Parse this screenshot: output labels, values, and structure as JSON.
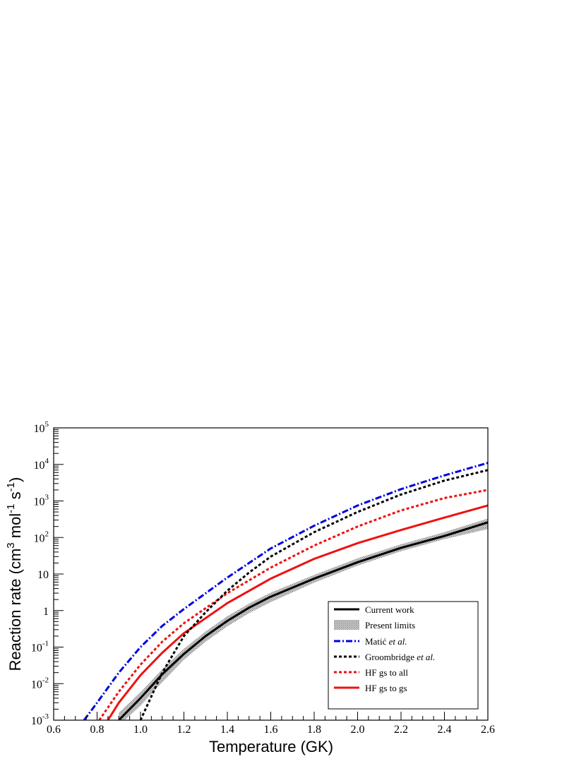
{
  "chart_data": {
    "type": "line",
    "title": "",
    "xlabel": "Temperature (GK)",
    "ylabel": "Reaction rate (cm³ mol⁻¹ s⁻¹)",
    "ylabel_parts": {
      "base1": "Reaction rate (cm",
      "sup1": "3",
      "base2": " mol",
      "sup2": "-1",
      "base3": " s",
      "sup3": "-1",
      "base4": ")"
    },
    "xlim": [
      0.6,
      2.6
    ],
    "ylim": [
      0.001,
      100000
    ],
    "yscale": "log",
    "grid": false,
    "legend_position": "lower-right",
    "x_ticks": [
      {
        "value": 0.6,
        "label": "0.6"
      },
      {
        "value": 0.8,
        "label": "0.8"
      },
      {
        "value": 1.0,
        "label": "1.0"
      },
      {
        "value": 1.2,
        "label": "1.2"
      },
      {
        "value": 1.4,
        "label": "1.4"
      },
      {
        "value": 1.6,
        "label": "1.6"
      },
      {
        "value": 1.8,
        "label": "1.8"
      },
      {
        "value": 2.0,
        "label": "2.0"
      },
      {
        "value": 2.2,
        "label": "2.2"
      },
      {
        "value": 2.4,
        "label": "2.4"
      },
      {
        "value": 2.6,
        "label": "2.6"
      }
    ],
    "y_ticks": [
      {
        "value": 0.001,
        "base": "10",
        "exp": "-3"
      },
      {
        "value": 0.01,
        "base": "10",
        "exp": "-2"
      },
      {
        "value": 0.1,
        "base": "10",
        "exp": "-1"
      },
      {
        "value": 1,
        "base": "1",
        "exp": ""
      },
      {
        "value": 10,
        "base": "10",
        "exp": ""
      },
      {
        "value": 100,
        "base": "10",
        "exp": "2"
      },
      {
        "value": 1000,
        "base": "10",
        "exp": "3"
      },
      {
        "value": 10000,
        "base": "10",
        "exp": "4"
      },
      {
        "value": 100000,
        "base": "10",
        "exp": "5"
      }
    ],
    "band": {
      "name": "Present limits",
      "color": "#a0a0a0",
      "x": [
        0.9,
        1.0,
        1.1,
        1.2,
        1.3,
        1.4,
        1.5,
        1.6,
        1.8,
        2.0,
        2.2,
        2.4,
        2.6
      ],
      "lower": [
        0.0007,
        0.0025,
        0.011,
        0.045,
        0.14,
        0.37,
        0.85,
        1.7,
        5.8,
        17,
        42,
        90,
        170
      ],
      "upper": [
        0.0016,
        0.0058,
        0.025,
        0.09,
        0.27,
        0.7,
        1.55,
        3.1,
        9.5,
        27,
        65,
        140,
        330
      ]
    },
    "series": [
      {
        "name": "Current work",
        "color": "#000000",
        "dash": "solid",
        "width": 3,
        "x": [
          0.9,
          1.0,
          1.1,
          1.2,
          1.3,
          1.4,
          1.5,
          1.6,
          1.8,
          2.0,
          2.2,
          2.4,
          2.6
        ],
        "y": [
          0.001,
          0.004,
          0.018,
          0.065,
          0.2,
          0.52,
          1.2,
          2.4,
          7.5,
          21,
          52,
          110,
          260
        ]
      },
      {
        "name": "Matić et al.",
        "label_plain": "Mati",
        "label_diacritic": "ć",
        "label_italic": "et al.",
        "color": "#0000e0",
        "dash": "dashdot",
        "width": 3,
        "x": [
          0.74,
          0.8,
          0.9,
          1.0,
          1.1,
          1.2,
          1.4,
          1.6,
          1.8,
          2.0,
          2.2,
          2.4,
          2.6
        ],
        "y": [
          0.001,
          0.003,
          0.02,
          0.1,
          0.38,
          1.1,
          8,
          50,
          210,
          750,
          2100,
          5000,
          11000
        ]
      },
      {
        "name": "Groombridge et al.",
        "label_plain": "Groombridge",
        "label_italic": "et al.",
        "color": "#000000",
        "dash": "dot",
        "width": 3,
        "x": [
          1.0,
          1.1,
          1.2,
          1.3,
          1.4,
          1.5,
          1.6,
          1.8,
          2.0,
          2.2,
          2.4,
          2.6
        ],
        "y": [
          0.001,
          0.02,
          0.2,
          0.9,
          3.5,
          11,
          30,
          140,
          500,
          1500,
          3600,
          7000
        ]
      },
      {
        "name": "HF gs to all",
        "color": "#ee1111",
        "dash": "dot",
        "width": 3,
        "x": [
          0.81,
          0.9,
          1.0,
          1.1,
          1.2,
          1.4,
          1.6,
          1.8,
          2.0,
          2.2,
          2.4,
          2.6
        ],
        "y": [
          0.001,
          0.006,
          0.033,
          0.14,
          0.45,
          3,
          15,
          60,
          200,
          550,
          1200,
          2000
        ]
      },
      {
        "name": "HF gs to gs",
        "color": "#ee1111",
        "dash": "solid",
        "width": 3,
        "x": [
          0.85,
          0.9,
          1.0,
          1.1,
          1.2,
          1.4,
          1.6,
          1.8,
          2.0,
          2.2,
          2.4,
          2.6
        ],
        "y": [
          0.001,
          0.003,
          0.017,
          0.07,
          0.24,
          1.6,
          7.5,
          26,
          70,
          160,
          350,
          750
        ]
      }
    ]
  }
}
